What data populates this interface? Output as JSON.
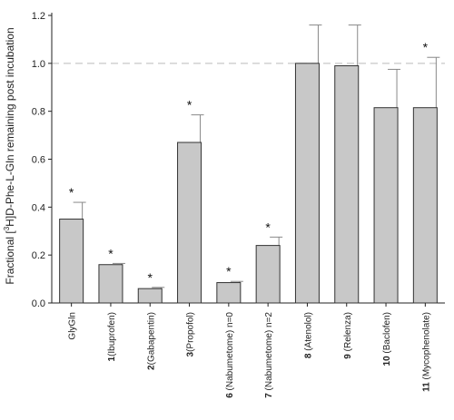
{
  "chart_data": {
    "type": "bar",
    "ylabel_parts": {
      "before": "Fractional [",
      "superscript": "3",
      "after": "H]D-Phe-L-Gln remaining post incubation"
    },
    "ylim": [
      0,
      1.2
    ],
    "yticks": [
      "0.0",
      "0.2",
      "0.4",
      "0.6",
      "0.8",
      "1.0",
      "1.2"
    ],
    "reference_line": 1.0,
    "categories": [
      {
        "num": "",
        "name": "GlyGln"
      },
      {
        "num": "1",
        "name": "(Ibuprofen)"
      },
      {
        "num": "2",
        "name": "(Gabapentin)"
      },
      {
        "num": "3",
        "name": "(Propofol)"
      },
      {
        "num": "6",
        "name": " (Nabumetome) n=0"
      },
      {
        "num": "7",
        "name": " (Nabumetome) n=2"
      },
      {
        "num": "8",
        "name": "  (Atenolol)"
      },
      {
        "num": "9",
        "name": " (Relenza)"
      },
      {
        "num": "10",
        "name": " (Baclofen)"
      },
      {
        "num": "11",
        "name": " (Mycophenolate)"
      }
    ],
    "values": [
      0.35,
      0.16,
      0.06,
      0.67,
      0.085,
      0.24,
      1.0,
      0.99,
      0.815,
      0.815
    ],
    "errors": [
      0.07,
      0.005,
      0.005,
      0.115,
      0.005,
      0.035,
      0.16,
      0.17,
      0.16,
      0.21
    ],
    "significance": [
      "*",
      "*",
      "*",
      "*",
      "*",
      "*",
      "",
      "",
      "",
      "*"
    ],
    "colors": {
      "bar_fill": "#c8c8c8",
      "bar_stroke": "#333333",
      "error": "#888888",
      "refline": "#bbbbbb"
    }
  }
}
